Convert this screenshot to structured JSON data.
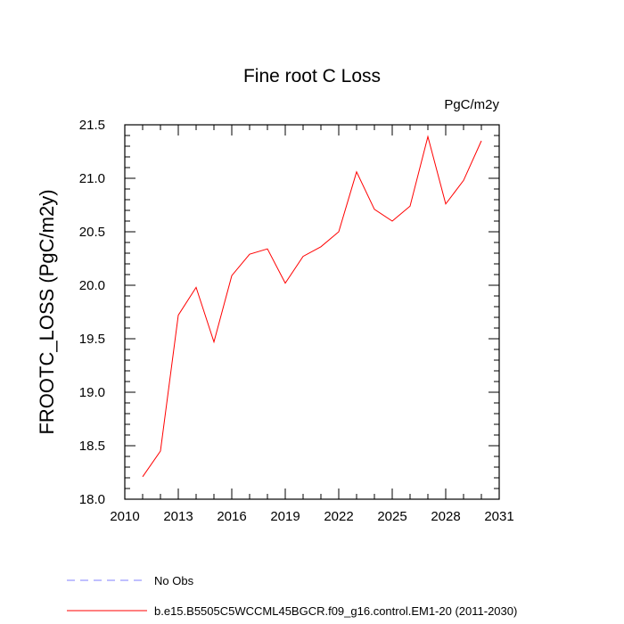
{
  "chart_data": {
    "type": "line",
    "title": "Fine root C Loss",
    "units": "PgC/m2y",
    "xlabel": "",
    "ylabel": "FROOTC_LOSS  (PgC/m2y)",
    "xlim": [
      2010,
      2031
    ],
    "ylim": [
      18.0,
      21.5
    ],
    "x_ticks": [
      2010,
      2013,
      2016,
      2019,
      2022,
      2025,
      2028,
      2031
    ],
    "x_tick_labels": [
      "2010",
      "2013",
      "2016",
      "2019",
      "2022",
      "2025",
      "2028",
      "2031"
    ],
    "y_ticks": [
      18.0,
      18.5,
      19.0,
      19.5,
      20.0,
      20.5,
      21.0,
      21.5
    ],
    "y_tick_labels": [
      "18.0",
      "18.5",
      "19.0",
      "19.5",
      "20.0",
      "20.5",
      "21.0",
      "21.5"
    ],
    "x_minor_step": 1,
    "y_minor_step": 0.1,
    "grid": false,
    "legend_position": "bottom",
    "series": [
      {
        "name": "b.e15.B5505C5WCCML45BGCR.f09_g16.control.EM1-20 (2011-2030)",
        "color": "#ff0000",
        "style": "solid",
        "x": [
          2011,
          2012,
          2013,
          2014,
          2015,
          2016,
          2017,
          2018,
          2019,
          2020,
          2021,
          2022,
          2023,
          2024,
          2025,
          2026,
          2027,
          2028,
          2029,
          2030
        ],
        "y": [
          18.21,
          18.45,
          19.72,
          19.98,
          19.47,
          20.09,
          20.29,
          20.34,
          20.02,
          20.27,
          20.36,
          20.5,
          21.06,
          20.71,
          20.6,
          20.74,
          21.39,
          20.76,
          20.98,
          21.35
        ]
      }
    ],
    "legend": [
      {
        "label": "No Obs",
        "color": "#8080ff",
        "style": "dashed"
      },
      {
        "label": "b.e15.B5505C5WCCML45BGCR.f09_g16.control.EM1-20 (2011-2030)",
        "color": "#ff0000",
        "style": "solid"
      }
    ]
  }
}
